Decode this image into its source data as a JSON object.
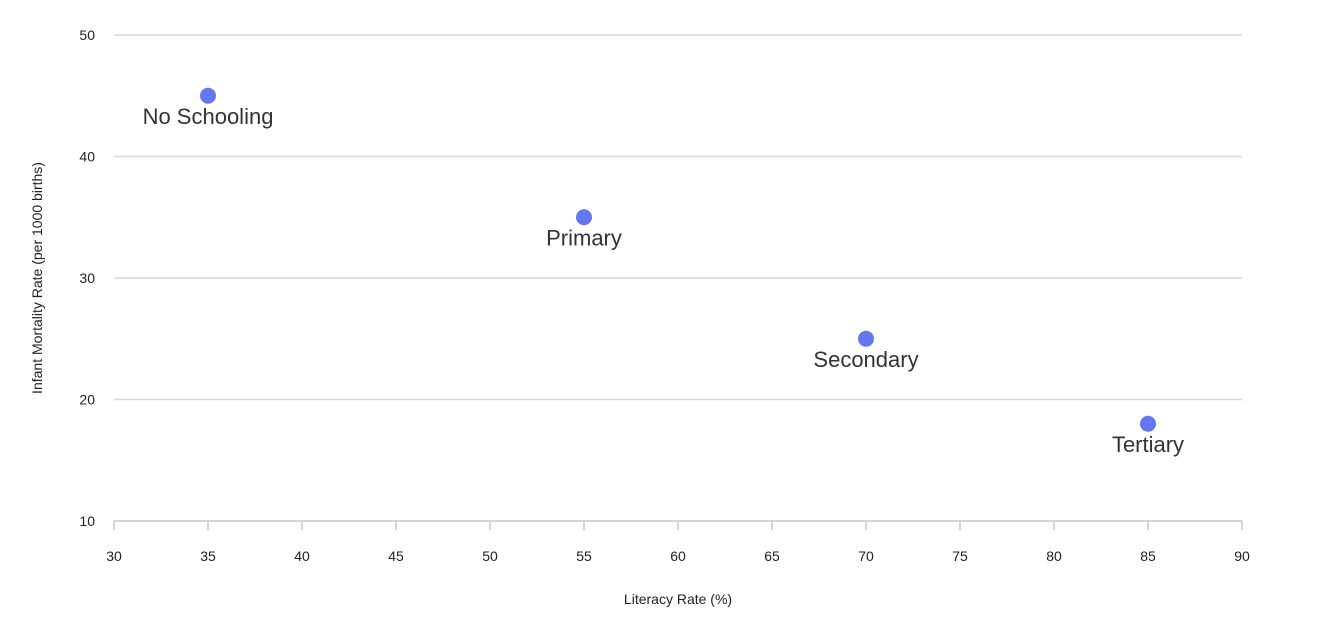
{
  "chart_data": {
    "type": "scatter",
    "title": "",
    "xlabel": "Literacy Rate (%)",
    "ylabel": "Infant Mortality Rate (per 1000 births)",
    "xlim": [
      30,
      90
    ],
    "ylim": [
      10,
      50
    ],
    "xticks": [
      30,
      35,
      40,
      45,
      50,
      55,
      60,
      65,
      70,
      75,
      80,
      85,
      90
    ],
    "yticks": [
      10,
      20,
      30,
      40,
      50
    ],
    "grid": "horizontal",
    "point_color": "#6378ee",
    "points": [
      {
        "label": "No Schooling",
        "x": 35,
        "y": 45
      },
      {
        "label": "Primary",
        "x": 55,
        "y": 35
      },
      {
        "label": "Secondary",
        "x": 70,
        "y": 25
      },
      {
        "label": "Tertiary",
        "x": 85,
        "y": 18
      }
    ]
  }
}
